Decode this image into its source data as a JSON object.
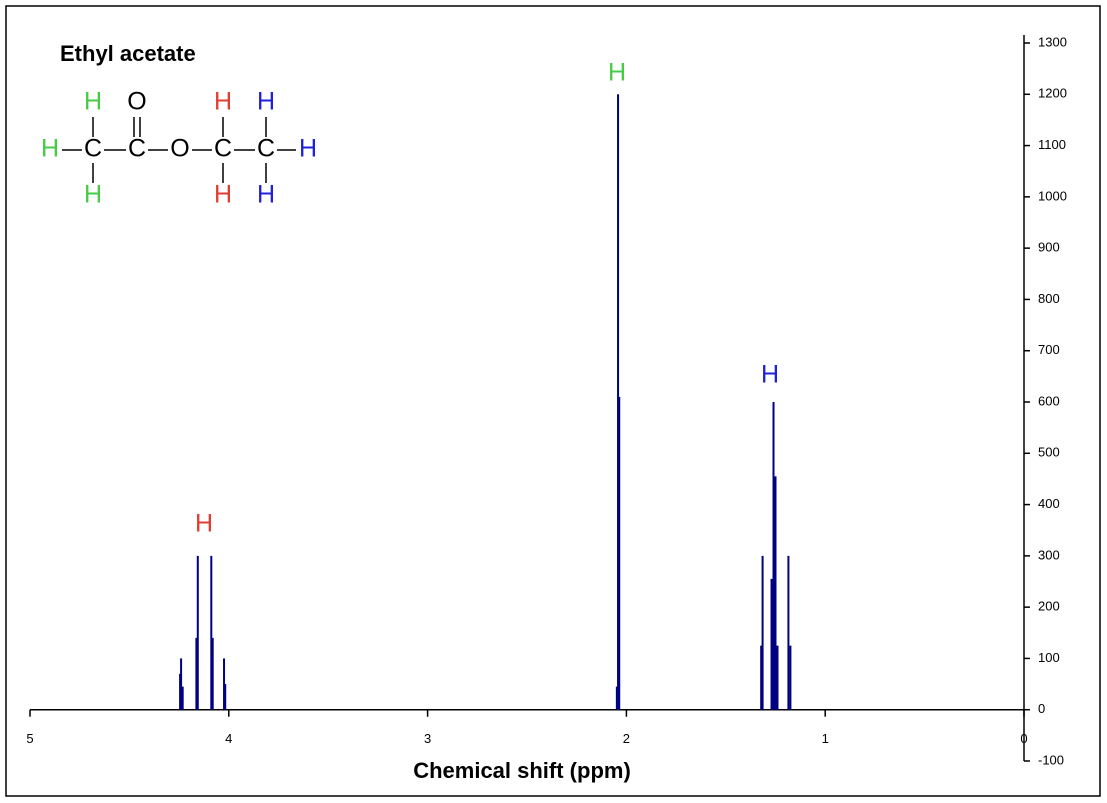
{
  "chart_data": {
    "type": "stick",
    "title": "Ethyl acetate",
    "x_label": "Chemical shift  (ppm)",
    "x": [
      4.245,
      4.24,
      4.232,
      4.163,
      4.156,
      4.088,
      4.081,
      4.024,
      4.018,
      2.048,
      2.042,
      2.036,
      1.322,
      1.315,
      1.27,
      1.26,
      1.25,
      1.24,
      1.185,
      1.175
    ],
    "values": [
      70,
      100,
      45,
      140,
      300,
      300,
      140,
      100,
      50,
      45,
      1200,
      610,
      125,
      300,
      255,
      600,
      455,
      125,
      300,
      125
    ],
    "color": "#000080",
    "xlim": [
      5,
      0
    ],
    "xticks": [
      5,
      4,
      3,
      2,
      1,
      0
    ],
    "ylim": [
      -100,
      1300
    ],
    "yticks": [
      -100,
      0,
      100,
      200,
      300,
      400,
      500,
      600,
      700,
      800,
      900,
      1000,
      1100,
      1200,
      1300
    ],
    "annotations": [
      {
        "text": "H",
        "color": "#e03c31"
      },
      {
        "text": "H",
        "color": "#44cc44"
      },
      {
        "text": "H",
        "color": "#2020d8"
      }
    ],
    "structure_atoms": [
      {
        "text": "H",
        "color": "#44cc44"
      },
      {
        "text": "O",
        "color": "#000000"
      },
      {
        "text": "H",
        "color": "#e03c31"
      },
      {
        "text": "H",
        "color": "#2020d8"
      },
      {
        "text": "H",
        "color": "#44cc44"
      },
      {
        "text": "C",
        "color": "#000000"
      },
      {
        "text": "C",
        "color": "#000000"
      },
      {
        "text": "O",
        "color": "#000000"
      },
      {
        "text": "C",
        "color": "#000000"
      },
      {
        "text": "C",
        "color": "#000000"
      },
      {
        "text": "H",
        "color": "#2020d8"
      },
      {
        "text": "H",
        "color": "#44cc44"
      },
      {
        "text": "H",
        "color": "#e03c31"
      },
      {
        "text": "H",
        "color": "#2020d8"
      }
    ]
  }
}
